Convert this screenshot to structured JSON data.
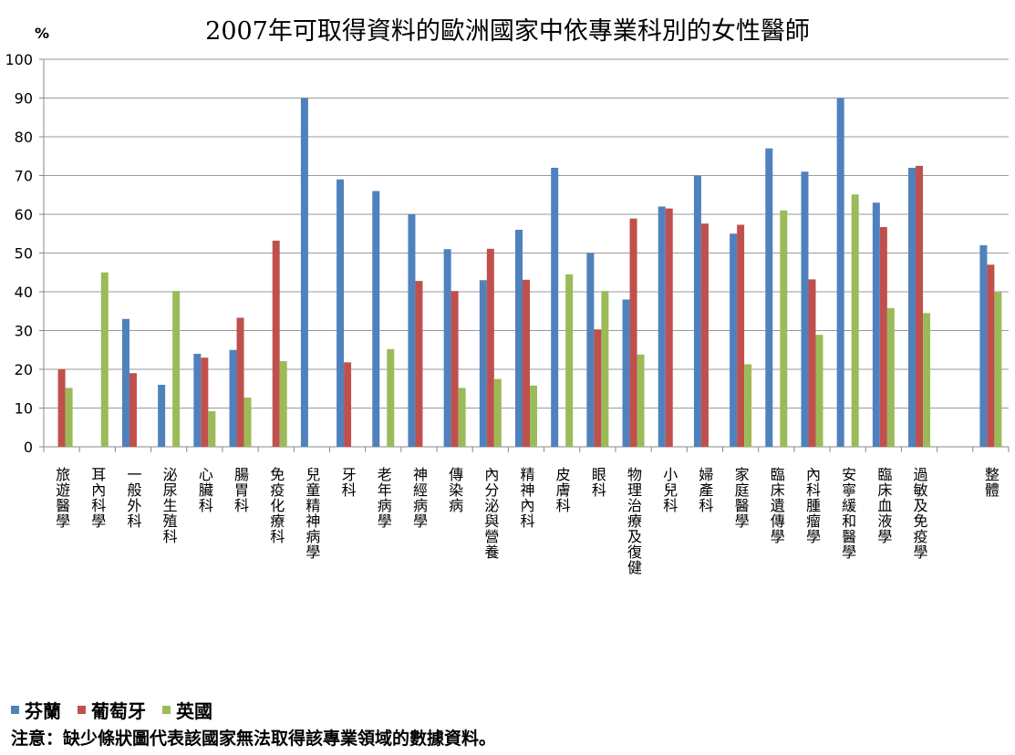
{
  "chart_data": {
    "type": "bar",
    "title": "2007年可取得資料的歐洲國家中依專業科別的女性醫師",
    "ylabel": "%",
    "ylim": [
      0,
      100
    ],
    "yticks": [
      0,
      10,
      20,
      30,
      40,
      50,
      60,
      70,
      80,
      90,
      100
    ],
    "grid": true,
    "legend_position": "bottom-left",
    "categories": [
      "旅遊醫學",
      "耳內科學",
      "一般外科",
      "泌尿生殖科",
      "心臟科",
      "腸胃科",
      "免疫化療科",
      "兒童精神病學",
      "牙科",
      "老年病學",
      "神經病學",
      "傳染病",
      "內分泌與營養",
      "精神內科",
      "皮膚科",
      "眼科",
      "物理治療及復健",
      "小兒科",
      "婦產科",
      "家庭醫學",
      "臨床遺傳學",
      "內科腫瘤學",
      "安寧緩和醫學",
      "臨床血液學",
      "過敏及免疫學",
      "",
      "整體"
    ],
    "series": [
      {
        "name": "芬蘭",
        "color": "#4f81bd",
        "values": [
          null,
          null,
          33,
          16,
          24,
          25,
          null,
          90,
          69,
          66,
          60,
          51,
          43,
          56,
          72,
          50,
          38,
          62,
          70,
          55,
          77,
          71,
          90,
          63,
          72,
          null,
          52
        ]
      },
      {
        "name": "葡萄牙",
        "color": "#c0504d",
        "values": [
          20,
          null,
          19,
          null,
          23,
          33.3,
          53.2,
          null,
          21.8,
          null,
          42.8,
          40.2,
          51.1,
          43.1,
          null,
          30.3,
          58.9,
          61.5,
          57.6,
          57.3,
          null,
          43.2,
          null,
          56.7,
          72.5,
          null,
          47
        ]
      },
      {
        "name": "英國",
        "color": "#9bbb59",
        "values": [
          15.2,
          45,
          null,
          40.2,
          9.2,
          12.7,
          22.1,
          null,
          null,
          25.2,
          null,
          15.2,
          17.5,
          15.8,
          44.5,
          40.2,
          23.8,
          null,
          null,
          21.3,
          61,
          28.9,
          65.1,
          35.8,
          34.5,
          null,
          40
        ]
      }
    ]
  },
  "note": "注意：缺少條狀圖代表該國家無法取得該專業領域的數據資料。"
}
